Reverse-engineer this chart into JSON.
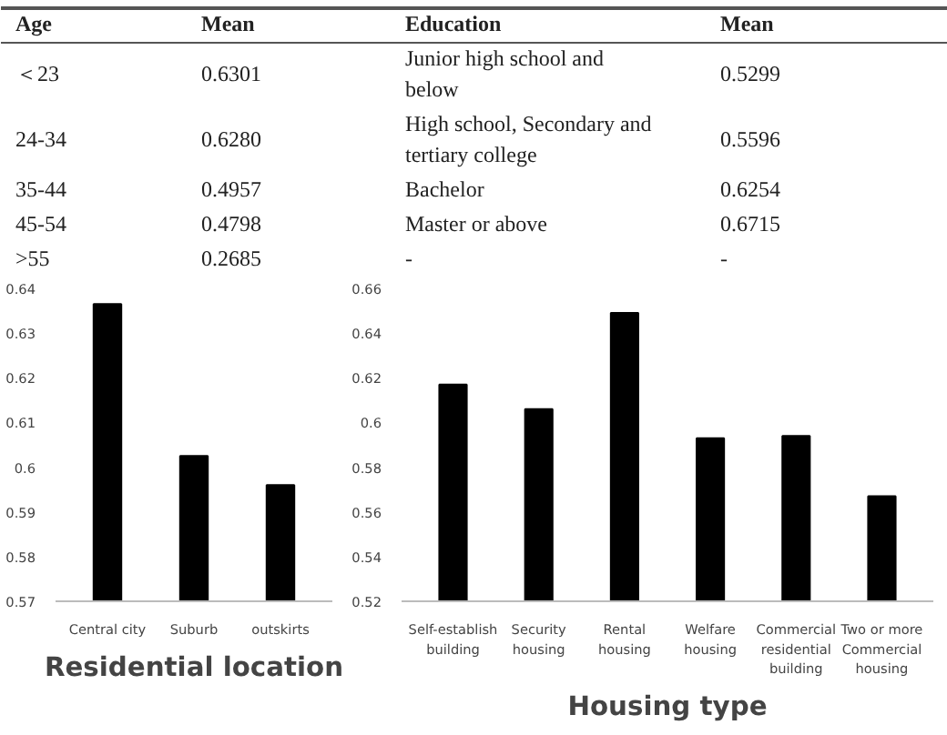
{
  "chart_data": [
    {
      "type": "other",
      "annotations": [
        "Age",
        "Mean",
        "Education",
        "Mean",
        "＜23",
        "0.6301",
        "Junior high school and below",
        "0.5299",
        "24-34",
        "0.6280",
        "High school, Secondary and tertiary college",
        "0.5596",
        "35-44",
        "0.4957",
        "Bachelor",
        "0.6254",
        "45-54",
        "0.4798",
        "Master or above",
        "0.6715",
        ">55",
        "0.2685",
        "-",
        "-"
      ]
    },
    {
      "type": "bar",
      "title": "Residential location",
      "categories": [
        "Central city",
        "Suburb",
        "outskirts"
      ],
      "values": [
        0.6365,
        0.6025,
        0.596
      ],
      "color": "#000000",
      "ylim": [
        0.57,
        0.64
      ],
      "yticks": [
        0.57,
        0.58,
        0.59,
        0.6,
        0.61,
        0.62,
        0.63,
        0.64
      ],
      "grid": false
    },
    {
      "type": "bar",
      "title": "Housing type",
      "categories": [
        "Self-establish building",
        "Security housing",
        "Rental housing",
        "Welfare housing",
        "Commercial residential building",
        "Two or more Commercial housing"
      ],
      "values": [
        0.617,
        0.606,
        0.649,
        0.593,
        0.594,
        0.567
      ],
      "color": "#000000",
      "ylim": [
        0.52,
        0.66
      ],
      "yticks": [
        0.52,
        0.54,
        0.56,
        0.58,
        0.6,
        0.62,
        0.64,
        0.66
      ],
      "grid": false
    }
  ]
}
